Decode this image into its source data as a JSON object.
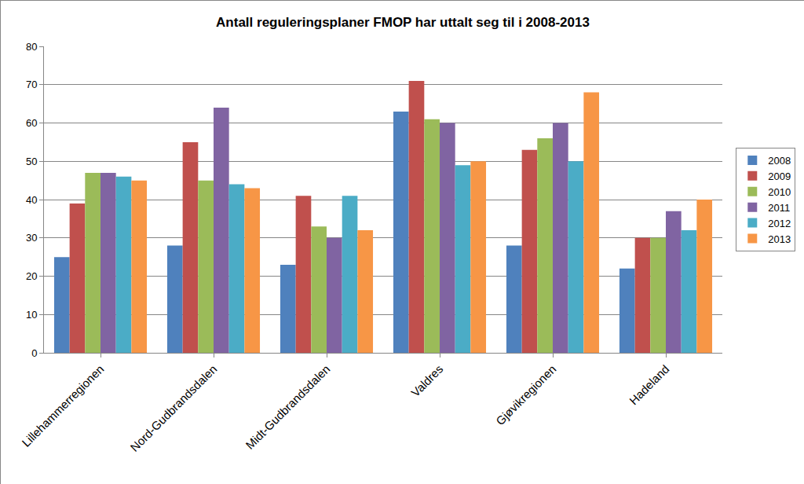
{
  "chart_data": {
    "type": "bar",
    "title": "Antall reguleringsplaner FMOP har uttalt seg til i 2008-2013",
    "categories": [
      "Lillehammerregionen",
      "Nord-Gudbrandsdalen",
      "Midt-Gudbrandsdalen",
      "Valdres",
      "Gjøvikregionen",
      "Hadeland"
    ],
    "series": [
      {
        "name": "2008",
        "color": "#4f81bd",
        "values": [
          25,
          28,
          23,
          63,
          28,
          22
        ]
      },
      {
        "name": "2009",
        "color": "#c0504d",
        "values": [
          39,
          55,
          41,
          71,
          53,
          30
        ]
      },
      {
        "name": "2010",
        "color": "#9bbb59",
        "values": [
          47,
          45,
          33,
          61,
          56,
          30
        ]
      },
      {
        "name": "2011",
        "color": "#8064a2",
        "values": [
          47,
          64,
          30,
          60,
          60,
          37
        ]
      },
      {
        "name": "2012",
        "color": "#4bacc6",
        "values": [
          46,
          44,
          41,
          49,
          50,
          32
        ]
      },
      {
        "name": "2013",
        "color": "#f79646",
        "values": [
          45,
          43,
          32,
          50,
          68,
          40
        ]
      }
    ],
    "ylim": [
      0,
      80
    ],
    "yticks": [
      0,
      10,
      20,
      30,
      40,
      50,
      60,
      70,
      80
    ],
    "grid": true,
    "legend": "right"
  }
}
